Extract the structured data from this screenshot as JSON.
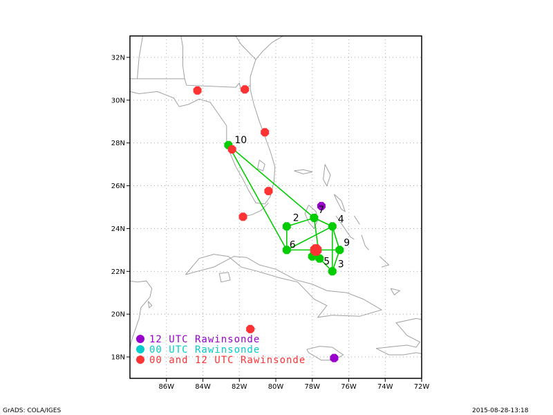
{
  "map": {
    "lon_range": [
      -88,
      -72
    ],
    "lat_range": [
      17,
      33
    ],
    "x_ticks": [
      {
        "lon": -86,
        "label": "86W"
      },
      {
        "lon": -84,
        "label": "84W"
      },
      {
        "lon": -82,
        "label": "82W"
      },
      {
        "lon": -80,
        "label": "80W"
      },
      {
        "lon": -78,
        "label": "78W"
      },
      {
        "lon": -76,
        "label": "76W"
      },
      {
        "lon": -74,
        "label": "74W"
      },
      {
        "lon": -72,
        "label": "72W"
      }
    ],
    "y_ticks": [
      {
        "lat": 18,
        "label": "18N"
      },
      {
        "lat": 20,
        "label": "20N"
      },
      {
        "lat": 22,
        "label": "22N"
      },
      {
        "lat": 24,
        "label": "24N"
      },
      {
        "lat": 26,
        "label": "26N"
      },
      {
        "lat": 28,
        "label": "28N"
      },
      {
        "lat": 30,
        "label": "30N"
      },
      {
        "lat": 32,
        "label": "32N"
      }
    ],
    "gridlines": "dotted",
    "track_color": "#00cc00",
    "coast_color": "#a0a0a0"
  },
  "legend": {
    "items": [
      {
        "label": "12 UTC Rawinsonde",
        "color": "#9900cc"
      },
      {
        "label": "00 UTC Rawinsonde",
        "color": "#00cccc"
      },
      {
        "label": "00 and 12 UTC Rawinsonde",
        "color": "#ff3333"
      }
    ],
    "placement": "bottom-left"
  },
  "points": {
    "numbered": [
      {
        "id": "2",
        "lon": -79.4,
        "lat": 24.1
      },
      {
        "id": "3",
        "lon": -76.9,
        "lat": 22.0
      },
      {
        "id": "4",
        "lon": -76.9,
        "lat": 24.1
      },
      {
        "id": "5",
        "lon": -77.6,
        "lat": 22.6
      },
      {
        "id": "6",
        "lon": -79.4,
        "lat": 23.0
      },
      {
        "id": "7",
        "lon": -77.9,
        "lat": 24.5
      },
      {
        "id": "9",
        "lon": -76.5,
        "lat": 23.0
      },
      {
        "id": "10",
        "lon": -82.6,
        "lat": 27.9
      }
    ],
    "extra_track_points": [
      {
        "lon": -78.0,
        "lat": 22.7
      }
    ],
    "rawinsonde_12utc": [
      {
        "lon": -77.5,
        "lat": 25.05
      },
      {
        "lon": -76.8,
        "lat": 17.95
      }
    ],
    "rawinsonde_00_12utc": [
      {
        "lon": -84.3,
        "lat": 30.45
      },
      {
        "lon": -81.7,
        "lat": 30.5
      },
      {
        "lon": -80.6,
        "lat": 28.5
      },
      {
        "lon": -82.4,
        "lat": 27.7
      },
      {
        "lon": -80.4,
        "lat": 25.75
      },
      {
        "lon": -81.8,
        "lat": 24.55
      },
      {
        "lon": -81.4,
        "lat": 19.3
      },
      {
        "lon": -77.8,
        "lat": 23.0
      }
    ]
  },
  "track_segments": [
    [
      "10",
      "7"
    ],
    [
      "10",
      "6"
    ],
    [
      "6",
      "2"
    ],
    [
      "2",
      "7"
    ],
    [
      "7",
      "4"
    ],
    [
      "4",
      "9"
    ],
    [
      "9",
      "3"
    ],
    [
      "3",
      "4"
    ],
    [
      "7",
      "5"
    ],
    [
      "6",
      "9"
    ],
    [
      "3",
      "5"
    ],
    [
      "4",
      "6"
    ]
  ],
  "footer": {
    "left": "GrADS: COLA/IGES",
    "right": "2015-08-28-13:18"
  }
}
